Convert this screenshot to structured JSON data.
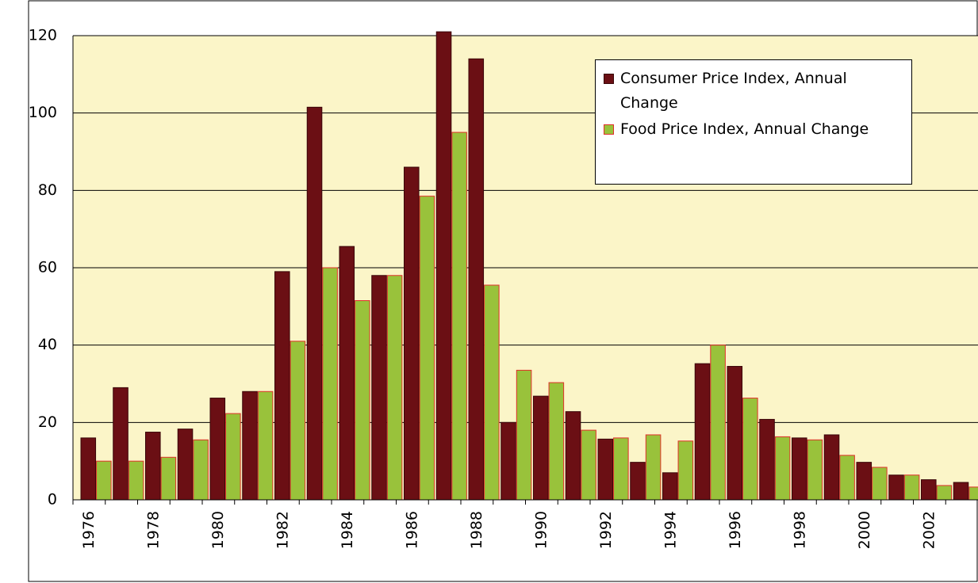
{
  "chart_data": {
    "type": "bar",
    "categories": [
      "1976",
      null,
      "1978",
      null,
      "1980",
      null,
      "1982",
      null,
      "1984",
      null,
      "1986",
      null,
      "1988",
      null,
      "1990",
      null,
      "1992",
      null,
      "1994",
      null,
      "1996",
      null,
      "1998",
      null,
      "2000",
      null,
      "2002",
      null
    ],
    "series": [
      {
        "name": "Consumer Price Index, Annual Change",
        "color": "#6b0f14",
        "values": [
          16,
          29,
          17.5,
          18.3,
          26.3,
          28,
          59,
          101.5,
          65.5,
          58,
          86,
          121,
          114,
          20,
          26.8,
          22.8,
          15.7,
          9.7,
          7,
          35.2,
          34.5,
          20.8,
          16,
          16.8,
          9.7,
          6.4,
          5.2,
          4.5
        ]
      },
      {
        "name": "Food Price Index, Annual Change",
        "color": "#99c23b",
        "values": [
          10,
          10,
          11,
          15.5,
          22.3,
          28,
          41,
          60,
          51.5,
          58,
          78.5,
          95,
          55.5,
          33.5,
          30.3,
          18,
          16,
          16.8,
          15.2,
          40,
          26.3,
          16.3,
          15.5,
          11.5,
          8.4,
          6.4,
          3.7,
          3.3
        ]
      }
    ],
    "ylim": [
      0,
      120
    ],
    "yticks": [
      0,
      20,
      40,
      60,
      80,
      100,
      120
    ],
    "grid": true
  }
}
